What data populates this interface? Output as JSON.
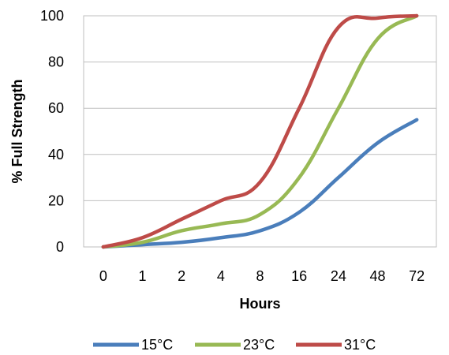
{
  "chart_data": {
    "type": "line",
    "title": "",
    "xlabel": "Hours",
    "ylabel": "% Full Strength",
    "categories": [
      "0",
      "1",
      "2",
      "4",
      "8",
      "16",
      "24",
      "48",
      "72"
    ],
    "ylim": [
      0,
      100
    ],
    "yticks": [
      0,
      20,
      40,
      60,
      80,
      100
    ],
    "grid": true,
    "legend_position": "bottom",
    "series": [
      {
        "name": "15°C",
        "color": "#4a7ebb",
        "values": [
          0,
          1,
          2,
          4,
          7,
          15,
          30,
          45,
          55
        ]
      },
      {
        "name": "23°C",
        "color": "#98b954",
        "values": [
          0,
          2,
          7,
          10,
          14,
          30,
          60,
          90,
          100
        ]
      },
      {
        "name": "31°C",
        "color": "#be4b48",
        "values": [
          0,
          4,
          12,
          20,
          28,
          60,
          95,
          99,
          100
        ]
      }
    ]
  }
}
